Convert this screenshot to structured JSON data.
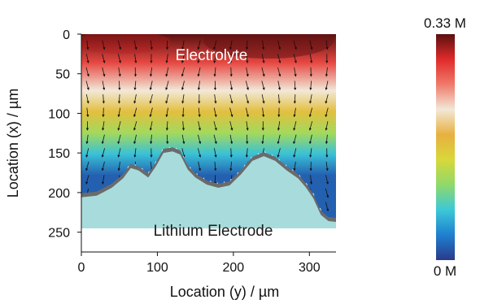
{
  "chart_data": {
    "type": "heatmap",
    "title": "",
    "xlabel": "Location (y) / µm",
    "ylabel": "Location (x) / µm",
    "x_ticks": [
      0,
      100,
      200,
      300
    ],
    "y_ticks": [
      0,
      50,
      100,
      150,
      200,
      250
    ],
    "xlim": [
      0,
      335
    ],
    "ylim": [
      0,
      275
    ],
    "y_axis_inverted": true,
    "colorbar": {
      "label_max": "0.33 M",
      "label_min": "0 M",
      "min": 0,
      "max": 0.33,
      "colormap": [
        "#2a3a8a",
        "#1f7fd0",
        "#3cc8d8",
        "#8fd96a",
        "#d8d83a",
        "#e8b040",
        "#f2e8d8",
        "#f07a6a",
        "#e02a2a",
        "#5a1010"
      ]
    },
    "regions": [
      {
        "label": "Electrolyte"
      },
      {
        "label": "Lithium Electrode",
        "color": "#a8dcdc"
      }
    ],
    "concentration_profile": [
      {
        "x": 0,
        "c": 0.33
      },
      {
        "x": 40,
        "c": 0.28
      },
      {
        "x": 80,
        "c": 0.22
      },
      {
        "x": 110,
        "c": 0.17
      },
      {
        "x": 140,
        "c": 0.12
      },
      {
        "x": 170,
        "c": 0.07
      },
      {
        "x": 200,
        "c": 0.02
      }
    ],
    "electrode_surface": [
      {
        "y": 0,
        "x": 206
      },
      {
        "y": 20,
        "x": 204
      },
      {
        "y": 40,
        "x": 194
      },
      {
        "y": 55,
        "x": 182
      },
      {
        "y": 65,
        "x": 169
      },
      {
        "y": 75,
        "x": 172
      },
      {
        "y": 88,
        "x": 181
      },
      {
        "y": 98,
        "x": 167
      },
      {
        "y": 108,
        "x": 150
      },
      {
        "y": 120,
        "x": 148
      },
      {
        "y": 130,
        "x": 152
      },
      {
        "y": 140,
        "x": 171
      },
      {
        "y": 150,
        "x": 181
      },
      {
        "y": 165,
        "x": 190
      },
      {
        "y": 180,
        "x": 194
      },
      {
        "y": 195,
        "x": 191
      },
      {
        "y": 210,
        "x": 177
      },
      {
        "y": 225,
        "x": 160
      },
      {
        "y": 240,
        "x": 154
      },
      {
        "y": 255,
        "x": 160
      },
      {
        "y": 270,
        "x": 172
      },
      {
        "y": 285,
        "x": 182
      },
      {
        "y": 295,
        "x": 193
      },
      {
        "y": 305,
        "x": 207
      },
      {
        "y": 315,
        "x": 228
      },
      {
        "y": 325,
        "x": 236
      },
      {
        "y": 335,
        "x": 237
      }
    ],
    "grid": false,
    "legend": "colorbar-right"
  }
}
